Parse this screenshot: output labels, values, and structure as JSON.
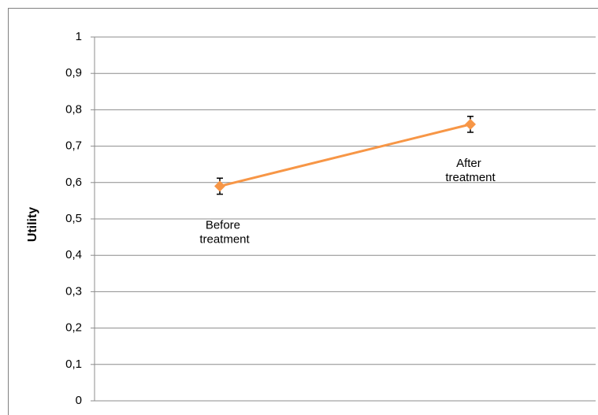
{
  "chart_data": {
    "type": "line",
    "ylabel": "Utility",
    "categories": [
      "Before treatment",
      "After treatment"
    ],
    "series": [
      {
        "name": "Utility",
        "color": "#f79646",
        "values": [
          0.59,
          0.76
        ],
        "errors": [
          0.022,
          0.022
        ]
      }
    ],
    "ylim": [
      0,
      1
    ],
    "yticks": [
      0,
      {
        "value": 0.1,
        "label": "0,1"
      },
      {
        "value": 0.2,
        "label": "0,2"
      },
      {
        "value": 0.3,
        "label": "0,3"
      },
      {
        "value": 0.4,
        "label": "0,4"
      },
      {
        "value": 0.5,
        "label": "0,5"
      },
      {
        "value": 0.6,
        "label": "0,6"
      },
      {
        "value": 0.7,
        "label": "0,7"
      },
      {
        "value": 0.8,
        "label": "0,8"
      },
      {
        "value": 0.9,
        "label": "0,9"
      },
      1
    ],
    "grid": true
  }
}
